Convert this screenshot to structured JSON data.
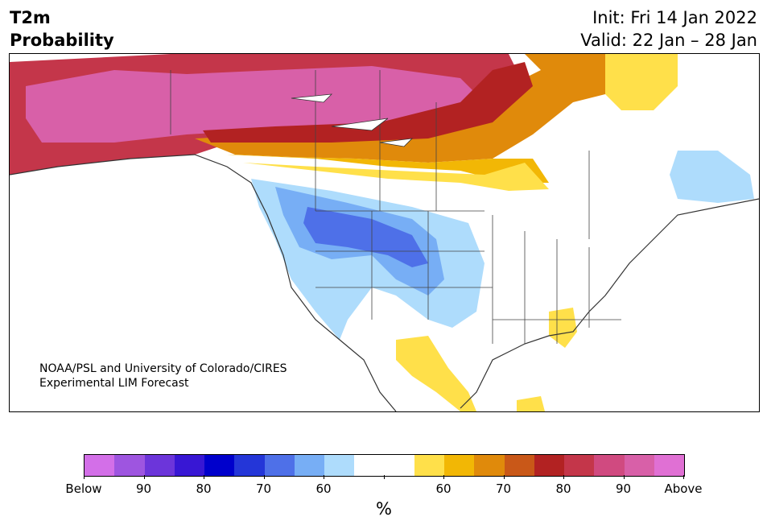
{
  "header": {
    "title_line1": "T2m",
    "title_line2": "Probability",
    "init": "Init: Fri 14 Jan 2022",
    "valid": "Valid: 22 Jan – 28 Jan"
  },
  "credit": {
    "line1": "NOAA/PSL and University of Colorado/CIRES",
    "line2": "Experimental LIM Forecast"
  },
  "colorbar": {
    "colors": [
      "#d36fe8",
      "#9e55e0",
      "#6c35da",
      "#3817d4",
      "#0000cc",
      "#2436d8",
      "#4e70e8",
      "#77aef5",
      "#aedcfc",
      "#ffffff",
      "#ffffff",
      "#ffe04a",
      "#f2b705",
      "#e08a0b",
      "#c95818",
      "#b22222",
      "#c4364a",
      "#d04a80",
      "#d860a8",
      "#e070d4"
    ],
    "tick_labels": [
      "Below",
      "90",
      "80",
      "70",
      "60",
      "",
      "60",
      "70",
      "80",
      "90",
      "Above"
    ],
    "unit": "%"
  }
}
